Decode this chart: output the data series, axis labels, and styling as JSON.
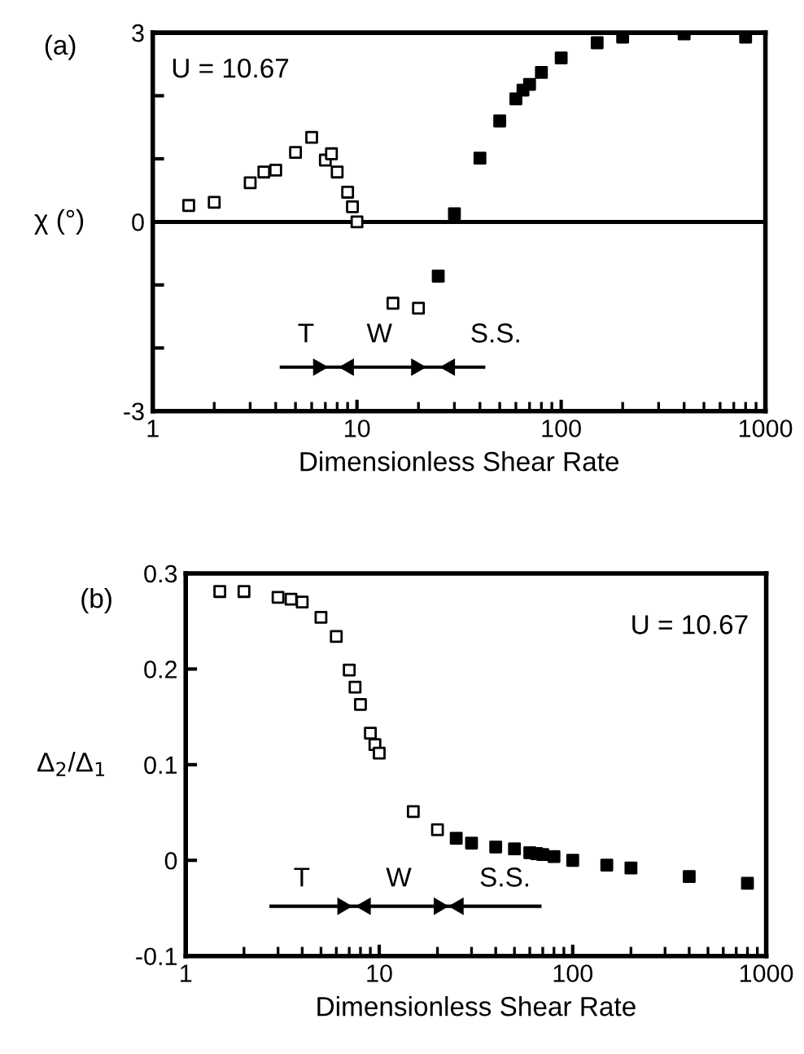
{
  "chart_data": [
    {
      "type": "scatter",
      "title": "(a)",
      "xlabel": "Dimensionless Shear Rate",
      "ylabel": "χ (°)",
      "log": "x",
      "xlim": [
        1,
        1000
      ],
      "xticks": [
        1,
        10,
        100,
        1000
      ],
      "ylim": [
        -3,
        3
      ],
      "yticks": [
        {
          "value": -3,
          "label": "-3"
        },
        {
          "value": -2,
          "label": null
        },
        {
          "value": -1,
          "label": null
        },
        0,
        {
          "value": 1,
          "label": null
        },
        {
          "value": 2,
          "label": null
        },
        3
      ],
      "marker": "square",
      "grid": false,
      "legend": false,
      "ref_lines": [
        {
          "axis": "y",
          "value": 0,
          "color": "#000000"
        }
      ],
      "annotations": [
        "U = 10.67",
        "T",
        "W",
        "S.S."
      ],
      "series": [
        {
          "color": "#ffffff",
          "x": [
            1.5,
            2,
            3,
            3.5,
            4,
            5,
            6,
            7,
            7.5,
            8,
            9,
            9.5,
            10,
            15,
            20
          ],
          "values": [
            0.26,
            0.31,
            0.62,
            0.79,
            0.82,
            1.1,
            1.34,
            0.98,
            1.08,
            0.79,
            0.47,
            0.24,
            0,
            -1.29,
            -1.37
          ]
        },
        {
          "color": "#000000",
          "x": [
            25,
            30,
            40,
            50,
            60,
            65,
            70,
            80,
            100,
            150,
            200,
            400,
            800
          ],
          "values": [
            -0.86,
            0.13,
            1.01,
            1.6,
            1.95,
            2.09,
            2.18,
            2.37,
            2.6,
            2.84,
            2.93,
            2.98,
            2.93
          ]
        }
      ]
    },
    {
      "type": "scatter",
      "title": "(b)",
      "xlabel": "Dimensionless Shear Rate",
      "ylabel": "Δ$_{2}$/Δ$_{1}$",
      "log": "x",
      "xlim": [
        1,
        1000
      ],
      "xticks": [
        1,
        10,
        100,
        1000
      ],
      "ylim": [
        -0.1,
        0.3
      ],
      "yticks": [
        {
          "value": -0.1,
          "label": "-0.1"
        },
        0,
        0.1,
        0.2,
        0.3
      ],
      "marker": "square",
      "grid": false,
      "legend": false,
      "annotations": [
        "U = 10.67",
        "T",
        "W",
        "S.S."
      ],
      "series": [
        {
          "color": "#ffffff",
          "x": [
            1.5,
            2,
            3,
            3.5,
            4,
            5,
            6,
            7,
            7.5,
            8,
            9,
            9.5,
            10,
            15,
            20
          ],
          "values": [
            0.281,
            0.281,
            0.275,
            0.273,
            0.27,
            0.254,
            0.234,
            0.199,
            0.181,
            0.163,
            0.133,
            0.121,
            0.112,
            0.051,
            0.032
          ]
        },
        {
          "color": "#000000",
          "x": [
            25,
            30,
            40,
            50,
            60,
            65,
            70,
            80,
            100,
            150,
            200,
            400,
            800
          ],
          "values": [
            0.023,
            0.018,
            0.014,
            0.012,
            0.008,
            0.007,
            0.006,
            0.004,
            0.0,
            -0.005,
            -0.008,
            -0.017,
            -0.024
          ]
        }
      ]
    }
  ]
}
